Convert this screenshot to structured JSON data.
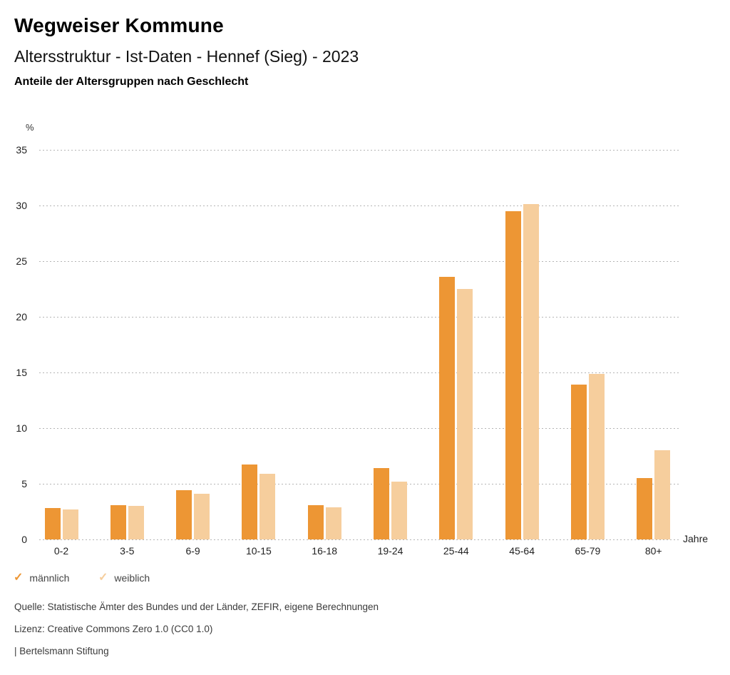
{
  "header": {
    "title": "Wegweiser Kommune",
    "subtitle": "Altersstruktur - Ist-Daten - Hennef (Sieg) - 2023",
    "heading": "Anteile der Altersgruppen nach Geschlecht"
  },
  "chart_data": {
    "type": "bar",
    "title": "Anteile der Altersgruppen nach Geschlecht",
    "categories": [
      "0-2",
      "3-5",
      "6-9",
      "10-15",
      "16-18",
      "19-24",
      "25-44",
      "45-64",
      "65-79",
      "80+"
    ],
    "series": [
      {
        "name": "männlich",
        "color": "#ED9634",
        "values": [
          2.8,
          3.1,
          4.4,
          6.7,
          3.1,
          6.4,
          23.6,
          29.5,
          13.9,
          5.5
        ]
      },
      {
        "name": "weiblich",
        "color": "#F6CE9D",
        "values": [
          2.7,
          3.0,
          4.1,
          5.9,
          2.9,
          5.2,
          22.5,
          30.1,
          14.9,
          8.0
        ]
      }
    ],
    "xlabel": "Jahre",
    "ylabel": "%",
    "ylim": [
      0,
      35
    ],
    "yticks": [
      0,
      5,
      10,
      15,
      20,
      25,
      30,
      35
    ],
    "grid": "horizontal-dotted",
    "legend_position": "bottom-left"
  },
  "icons": {
    "legend_check": "✓"
  },
  "footer": {
    "source": "Quelle: Statistische Ämter des Bundes und der Länder, ZEFIR, eigene Berechnungen",
    "license": "Lizenz: Creative Commons Zero 1.0 (CC0 1.0)",
    "attribution": "| Bertelsmann Stiftung"
  }
}
